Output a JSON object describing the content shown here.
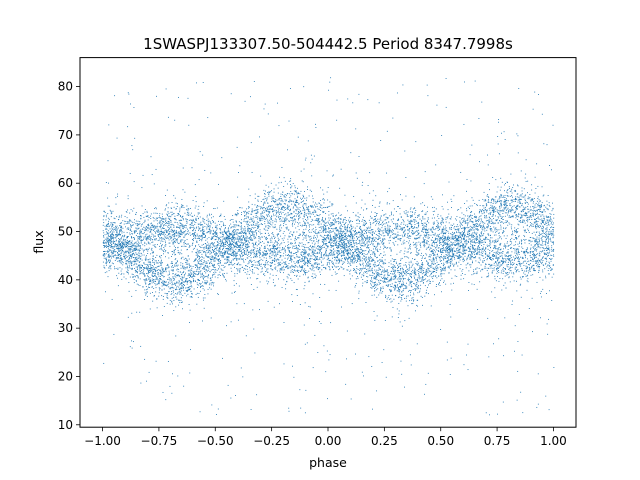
{
  "chart_data": {
    "type": "scatter",
    "title": "1SWASPJ133307.50-504442.5 Period 8347.7998s",
    "xlabel": "phase",
    "ylabel": "flux",
    "xlim": [
      -1.1,
      1.1
    ],
    "ylim": [
      9.5,
      86
    ],
    "xticks": [
      -1.0,
      -0.75,
      -0.5,
      -0.25,
      0.0,
      0.25,
      0.5,
      0.75,
      1.0
    ],
    "xtick_labels": [
      "−1.00",
      "−0.75",
      "−0.50",
      "−0.25",
      "0.00",
      "0.25",
      "0.50",
      "0.75",
      "1.00"
    ],
    "yticks": [
      10,
      20,
      30,
      40,
      50,
      60,
      70,
      80
    ],
    "ytick_labels": [
      "10",
      "20",
      "30",
      "40",
      "50",
      "60",
      "70",
      "80"
    ],
    "grid": false,
    "legend": "none",
    "point_color": "#1f77b4",
    "x_range": [
      -1.0,
      1.0
    ],
    "series": [
      {
        "mean_flux": 47.5,
        "amplitude": 7.5,
        "cycles_per_unit_phase": 1,
        "minimum_phases": [
          -0.68,
          0.32
        ],
        "maximum_phases": [
          -0.18,
          0.82
        ],
        "typical_spread": 2.5,
        "outlier_range": [
          12,
          82
        ]
      },
      {
        "mean_flux": 47.5,
        "amplitude": 3.0,
        "cycles_per_unit_phase": 1,
        "minimum_phases": [
          -0.18,
          0.82
        ],
        "maximum_phases": [
          -0.68,
          0.32
        ],
        "typical_spread": 2.5,
        "outlier_range": [
          12,
          82
        ]
      }
    ]
  }
}
